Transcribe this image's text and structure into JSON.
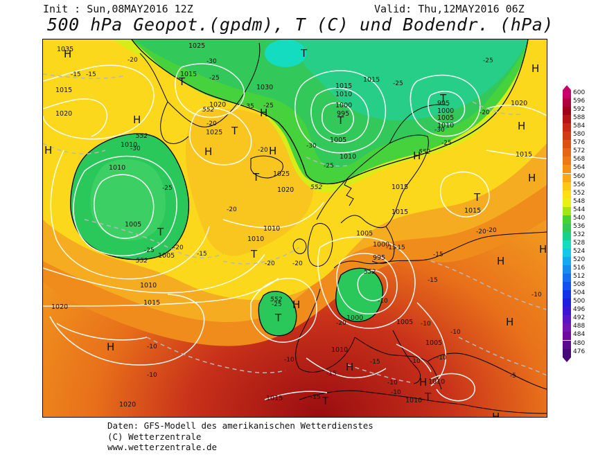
{
  "header": {
    "init": "Init : Sun,08MAY2016 12Z",
    "valid": "Valid: Thu,12MAY2016 06Z",
    "title": "500 hPa Geopot.(gpdm), T (C) und Bodendr. (hPa)"
  },
  "credits": {
    "line1": "Daten: GFS-Modell des amerikanischen Wetterdienstes",
    "line2": "(C) Wetterzentrale",
    "line3": "www.wetterzentrale.de"
  },
  "legend": {
    "values": [
      "600",
      "596",
      "592",
      "588",
      "584",
      "580",
      "576",
      "572",
      "568",
      "564",
      "560",
      "556",
      "552",
      "548",
      "544",
      "540",
      "536",
      "532",
      "528",
      "524",
      "520",
      "516",
      "512",
      "508",
      "504",
      "500",
      "496",
      "492",
      "488",
      "484",
      "480",
      "476"
    ],
    "colors": [
      "#c8006a",
      "#b0003c",
      "#a00018",
      "#b41414",
      "#c82814",
      "#d23c14",
      "#dc5014",
      "#e66414",
      "#ee7814",
      "#f49014",
      "#f8a814",
      "#fcc814",
      "#ffe014",
      "#e8f014",
      "#a0e614",
      "#46d232",
      "#32c85a",
      "#14d28c",
      "#14dcc0",
      "#14c8e6",
      "#14aaf0",
      "#148cf0",
      "#146ef0",
      "#1450f0",
      "#1432e6",
      "#1e1edc",
      "#3c14d2",
      "#5a14c8",
      "#7014b4",
      "#6e0aa0",
      "#5a0a8c",
      "#460a78"
    ]
  },
  "map": {
    "pressure_labels": [
      "1035",
      "1025",
      "1030",
      "1015",
      "1020",
      "1015",
      "1020",
      "1015",
      "1010",
      "1005",
      "1000",
      "995",
      "1005",
      "1010",
      "1015",
      "1020",
      "1025",
      "1030",
      "1010",
      "1010",
      "1020",
      "1025",
      "1005",
      "1010",
      "1015",
      "1020",
      "1010",
      "1015",
      "1010",
      "1015",
      "1010",
      "1005",
      "1000",
      "995",
      "1000",
      "1005",
      "1010",
      "1020",
      "1015",
      "1010",
      "1005",
      "1000",
      "1005",
      "1010",
      "1010",
      "1020",
      "1015",
      "1015",
      "1010",
      "1005",
      "1000",
      "995",
      "1005",
      "1010",
      "1020",
      "1010"
    ],
    "temp_labels": [
      "-15",
      "-15",
      "-20",
      "-30",
      "-25",
      "-35",
      "-25",
      "-20",
      "-30",
      "-25",
      "-20",
      "-25",
      "-30",
      "-25",
      "-25",
      "-30",
      "-20",
      "-20",
      "-25",
      "-20",
      "-25",
      "-20",
      "-15",
      "-20",
      "-20",
      "-15",
      "-25",
      "-20",
      "-15",
      "-10",
      "-15",
      "-15",
      "-10",
      "-10",
      "-10",
      "-15",
      "-10",
      "-10",
      "-10",
      "-5",
      "-10",
      "-15",
      "-15",
      "-20",
      "-10",
      "-10",
      "-10"
    ],
    "geopot_labels": [
      "552",
      "552",
      "552",
      "552",
      "552",
      "552",
      "552"
    ],
    "high_symbol": "H",
    "low_symbol": "T"
  }
}
